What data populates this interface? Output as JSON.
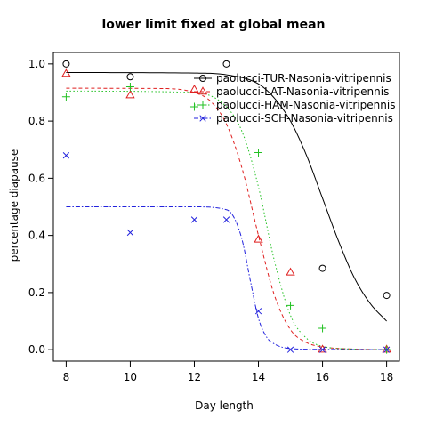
{
  "chart_data": {
    "type": "scatter",
    "title": "lower limit fixed at global mean",
    "xlabel": "Day length",
    "ylabel": "percentage diapause",
    "xlim": [
      7.6,
      18.4
    ],
    "ylim": [
      -0.04,
      1.04
    ],
    "xticks": [
      8,
      10,
      12,
      14,
      16,
      18
    ],
    "yticks": [
      0.0,
      0.2,
      0.4,
      0.6,
      0.8,
      1.0
    ],
    "xtick_labels": [
      "8",
      "10",
      "12",
      "14",
      "16",
      "18"
    ],
    "ytick_labels": [
      "0.0",
      "0.2",
      "0.4",
      "0.6",
      "0.8",
      "1.0"
    ],
    "legend_position": "top-right",
    "grid": false,
    "series": [
      {
        "name": "paolucci-TUR-Nasonia-vitripennis",
        "color": "#000000",
        "marker": "circle",
        "line_style": "solid",
        "points": {
          "x": [
            8,
            10,
            13,
            16,
            18
          ],
          "y": [
            1.0,
            0.955,
            1.0,
            0.285,
            0.19
          ]
        },
        "curve": {
          "x": [
            8,
            12,
            13,
            14,
            14.5,
            15,
            15.5,
            16,
            16.5,
            17,
            17.5,
            18
          ],
          "y": [
            0.97,
            0.968,
            0.962,
            0.93,
            0.88,
            0.8,
            0.68,
            0.53,
            0.38,
            0.25,
            0.16,
            0.1
          ]
        }
      },
      {
        "name": "paolucci-LAT-Nasonia-vitripennis",
        "color": "#df1f1f",
        "marker": "triangle",
        "line_style": "dashed",
        "points": {
          "x": [
            8,
            10,
            12,
            14,
            15,
            16,
            18
          ],
          "y": [
            0.965,
            0.89,
            0.91,
            0.385,
            0.27,
            0.0,
            0.0
          ]
        },
        "curve": {
          "x": [
            8,
            11,
            12,
            12.5,
            13,
            13.5,
            14,
            14.5,
            15,
            15.5,
            16,
            17,
            18
          ],
          "y": [
            0.915,
            0.914,
            0.9,
            0.87,
            0.79,
            0.63,
            0.4,
            0.19,
            0.07,
            0.025,
            0.01,
            0.002,
            0.0
          ]
        }
      },
      {
        "name": "paolucci-HAM-Nasonia-vitripennis",
        "color": "#22c122",
        "marker": "plus",
        "line_style": "dotted",
        "points": {
          "x": [
            8,
            10,
            12,
            14,
            15,
            16,
            18
          ],
          "y": [
            0.885,
            0.92,
            0.85,
            0.69,
            0.155,
            0.075,
            0.0
          ]
        },
        "curve": {
          "x": [
            8,
            12,
            13,
            13.5,
            14,
            14.5,
            15,
            15.5,
            16,
            17,
            18
          ],
          "y": [
            0.905,
            0.9,
            0.85,
            0.76,
            0.57,
            0.31,
            0.12,
            0.04,
            0.012,
            0.002,
            0.0
          ]
        }
      },
      {
        "name": "paolucci-SCH-Nasonia-vitripennis",
        "color": "#2222dd",
        "marker": "cross",
        "line_style": "dashdot",
        "points": {
          "x": [
            8,
            10,
            12,
            13,
            14,
            15,
            16,
            18
          ],
          "y": [
            0.68,
            0.41,
            0.455,
            0.455,
            0.135,
            0.0,
            0.0,
            0.0
          ]
        },
        "curve": {
          "x": [
            8,
            12,
            13,
            13.25,
            13.5,
            13.75,
            14,
            14.25,
            14.5,
            15,
            16,
            18
          ],
          "y": [
            0.5,
            0.5,
            0.49,
            0.46,
            0.38,
            0.24,
            0.11,
            0.045,
            0.02,
            0.004,
            0.001,
            0.0
          ]
        }
      }
    ]
  }
}
